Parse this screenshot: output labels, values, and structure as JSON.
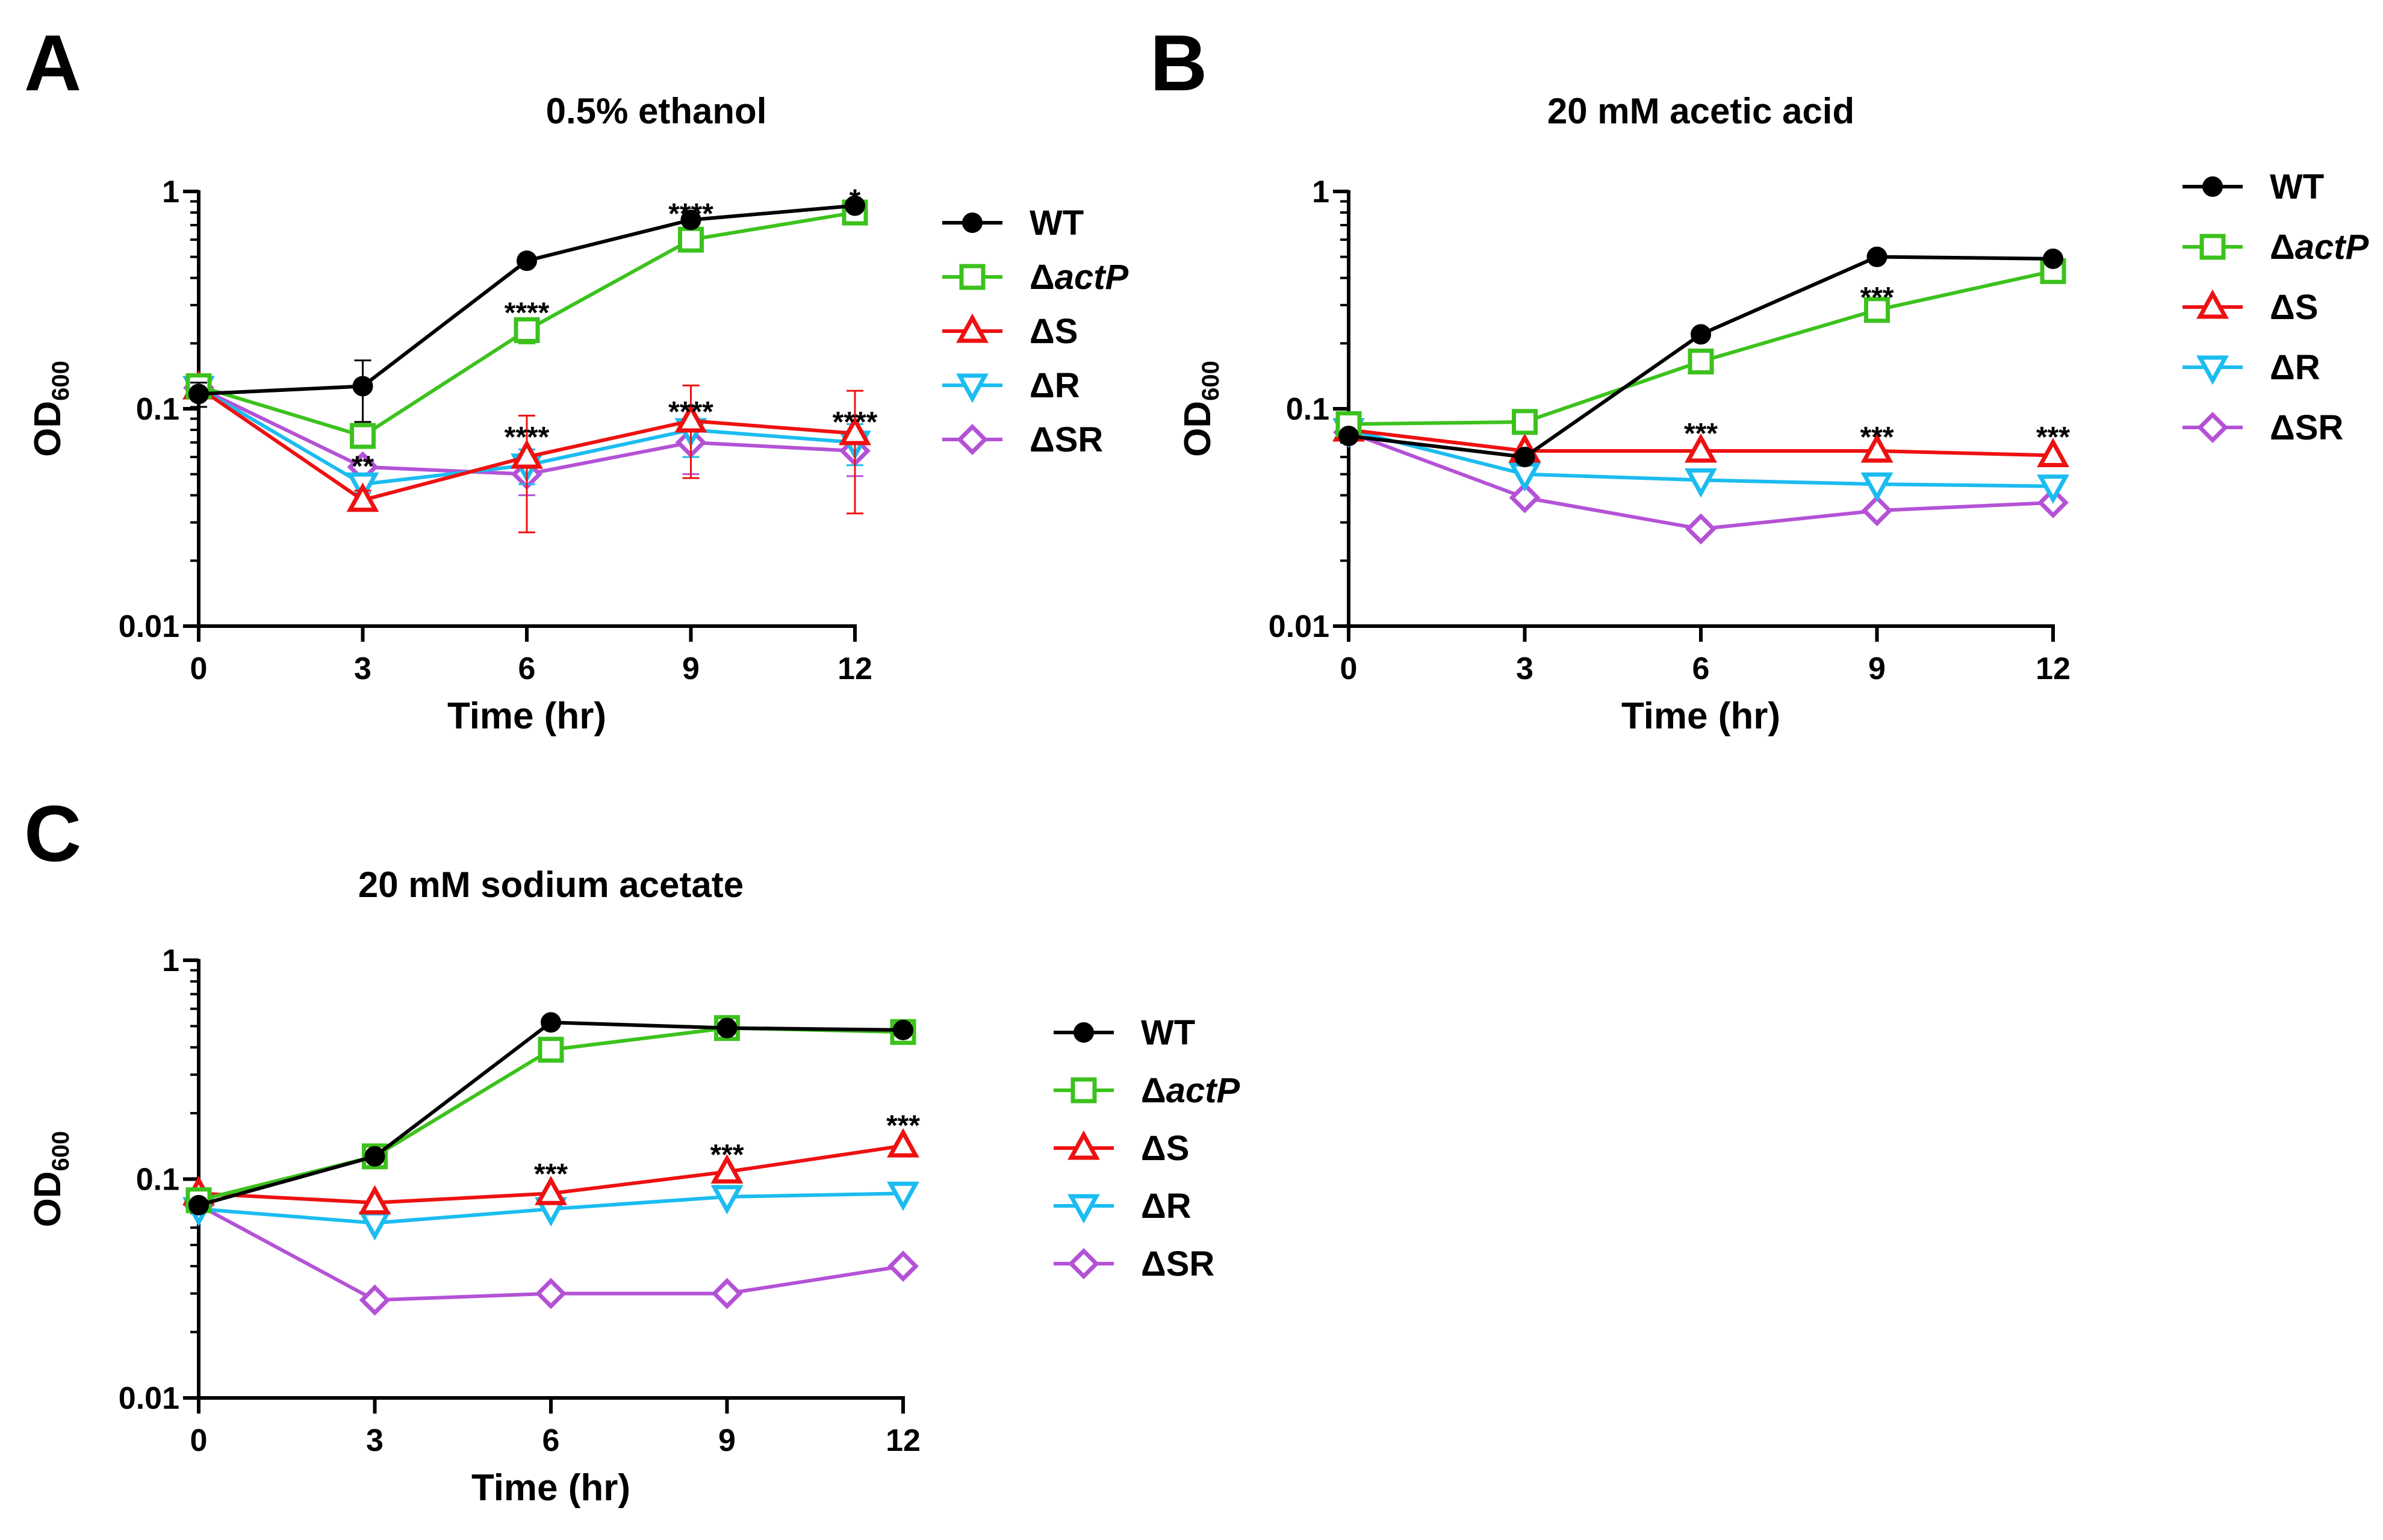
{
  "series_styles": {
    "WT": {
      "color": "#000000",
      "marker": "circle",
      "filled": true
    },
    "dactP": {
      "color": "#3cc21d",
      "marker": "square",
      "filled": false
    },
    "dS": {
      "color": "#ee1111",
      "marker": "triangle-up",
      "filled": false
    },
    "dR": {
      "color": "#1bbcf0",
      "marker": "triangle-down",
      "filled": false
    },
    "dSR": {
      "color": "#b452d6",
      "marker": "diamond",
      "filled": false
    }
  },
  "chart_data": [
    {
      "id": "A",
      "panel_label": "A",
      "type": "line",
      "title": "0.5% ethanol",
      "xlabel": "Time (hr)",
      "ylabel_main": "OD",
      "ylabel_sub": "600",
      "yscale": "log",
      "ylim": [
        0.01,
        1
      ],
      "xlim": [
        0,
        12
      ],
      "x": [
        0,
        3,
        6,
        9,
        12
      ],
      "x_ticks": [
        "0",
        "3",
        "6",
        "9",
        "12"
      ],
      "y_ticks": [
        "0.01",
        "0.1",
        "1"
      ],
      "legend_position": "right",
      "series": [
        {
          "key": "WT",
          "name": "WT",
          "values": [
            0.117,
            0.127,
            0.48,
            0.74,
            0.86
          ],
          "err": [
            0.015,
            0.04,
            0.02,
            0.03,
            0.03
          ]
        },
        {
          "key": "dactP",
          "name": "actP",
          "prefix": "Δ",
          "italic": true,
          "values": [
            0.127,
            0.075,
            0.23,
            0.6,
            0.8
          ],
          "err": [
            0,
            0.008,
            0.03,
            0.04,
            0.03
          ]
        },
        {
          "key": "dS",
          "name": "S",
          "prefix": "Δ",
          "italic": false,
          "values": [
            0.125,
            0.038,
            0.06,
            0.088,
            0.077
          ],
          "err": [
            0,
            0.004,
            0.033,
            0.04,
            0.044
          ]
        },
        {
          "key": "dR",
          "name": "R",
          "prefix": "Δ",
          "italic": false,
          "values": [
            0.125,
            0.045,
            0.055,
            0.08,
            0.07
          ],
          "err": [
            0,
            0.004,
            0.01,
            0.02,
            0.015
          ]
        },
        {
          "key": "dSR",
          "name": "SR",
          "prefix": "Δ",
          "italic": false,
          "values": [
            0.125,
            0.054,
            0.05,
            0.07,
            0.064
          ],
          "err": [
            0,
            0.004,
            0.01,
            0.02,
            0.015
          ]
        }
      ],
      "annotations": [
        {
          "x": 3,
          "y": 0.055,
          "text": "**"
        },
        {
          "x": 6,
          "y": 0.28,
          "text": "****"
        },
        {
          "x": 6,
          "y": 0.075,
          "text": "****"
        },
        {
          "x": 9,
          "y": 0.8,
          "text": "****"
        },
        {
          "x": 9,
          "y": 0.098,
          "text": "****"
        },
        {
          "x": 12,
          "y": 0.93,
          "text": "*"
        },
        {
          "x": 12,
          "y": 0.088,
          "text": "****"
        }
      ]
    },
    {
      "id": "B",
      "panel_label": "B",
      "type": "line",
      "title": "20 mM acetic acid",
      "xlabel": "Time (hr)",
      "ylabel_main": "OD",
      "ylabel_sub": "600",
      "yscale": "log",
      "ylim": [
        0.01,
        1
      ],
      "xlim": [
        0,
        12
      ],
      "x": [
        0,
        3,
        6,
        9,
        12
      ],
      "x_ticks": [
        "0",
        "3",
        "6",
        "9",
        "12"
      ],
      "y_ticks": [
        "0.01",
        "0.1",
        "1"
      ],
      "legend_position": "right",
      "series": [
        {
          "key": "WT",
          "name": "WT",
          "values": [
            0.075,
            0.06,
            0.22,
            0.5,
            0.49
          ]
        },
        {
          "key": "dactP",
          "name": "actP",
          "prefix": "Δ",
          "italic": true,
          "values": [
            0.085,
            0.087,
            0.165,
            0.285,
            0.43
          ]
        },
        {
          "key": "dS",
          "name": "S",
          "prefix": "Δ",
          "italic": false,
          "values": [
            0.08,
            0.064,
            0.064,
            0.064,
            0.061
          ]
        },
        {
          "key": "dR",
          "name": "R",
          "prefix": "Δ",
          "italic": false,
          "values": [
            0.08,
            0.05,
            0.047,
            0.045,
            0.044
          ]
        },
        {
          "key": "dSR",
          "name": "SR",
          "prefix": "Δ",
          "italic": false,
          "values": [
            0.078,
            0.039,
            0.028,
            0.034,
            0.037
          ]
        }
      ],
      "annotations": [
        {
          "x": 9,
          "y": 0.33,
          "text": "***"
        },
        {
          "x": 6,
          "y": 0.078,
          "text": "***"
        },
        {
          "x": 9,
          "y": 0.075,
          "text": "***"
        },
        {
          "x": 12,
          "y": 0.075,
          "text": "***"
        }
      ]
    },
    {
      "id": "C",
      "panel_label": "C",
      "type": "line",
      "title": "20 mM sodium acetate",
      "xlabel": "Time (hr)",
      "ylabel_main": "OD",
      "ylabel_sub": "600",
      "yscale": "log",
      "ylim": [
        0.01,
        1
      ],
      "xlim": [
        0,
        12
      ],
      "x": [
        0,
        3,
        6,
        9,
        12
      ],
      "x_ticks": [
        "0",
        "3",
        "6",
        "9",
        "12"
      ],
      "y_ticks": [
        "0.01",
        "0.1",
        "1"
      ],
      "legend_position": "right",
      "series": [
        {
          "key": "WT",
          "name": "WT",
          "values": [
            0.076,
            0.127,
            0.52,
            0.49,
            0.48
          ]
        },
        {
          "key": "dactP",
          "name": "actP",
          "prefix": "Δ",
          "italic": true,
          "values": [
            0.08,
            0.127,
            0.39,
            0.49,
            0.47
          ]
        },
        {
          "key": "dS",
          "name": "S",
          "prefix": "Δ",
          "italic": false,
          "values": [
            0.086,
            0.078,
            0.086,
            0.108,
            0.142
          ]
        },
        {
          "key": "dR",
          "name": "R",
          "prefix": "Δ",
          "italic": false,
          "values": [
            0.073,
            0.063,
            0.073,
            0.083,
            0.086
          ]
        },
        {
          "key": "dSR",
          "name": "SR",
          "prefix": "Δ",
          "italic": false,
          "values": [
            0.076,
            0.028,
            0.03,
            0.03,
            0.04
          ]
        }
      ],
      "annotations": [
        {
          "x": 6,
          "y": 0.107,
          "text": "***"
        },
        {
          "x": 9,
          "y": 0.131,
          "text": "***"
        },
        {
          "x": 12,
          "y": 0.178,
          "text": "***"
        }
      ]
    }
  ]
}
